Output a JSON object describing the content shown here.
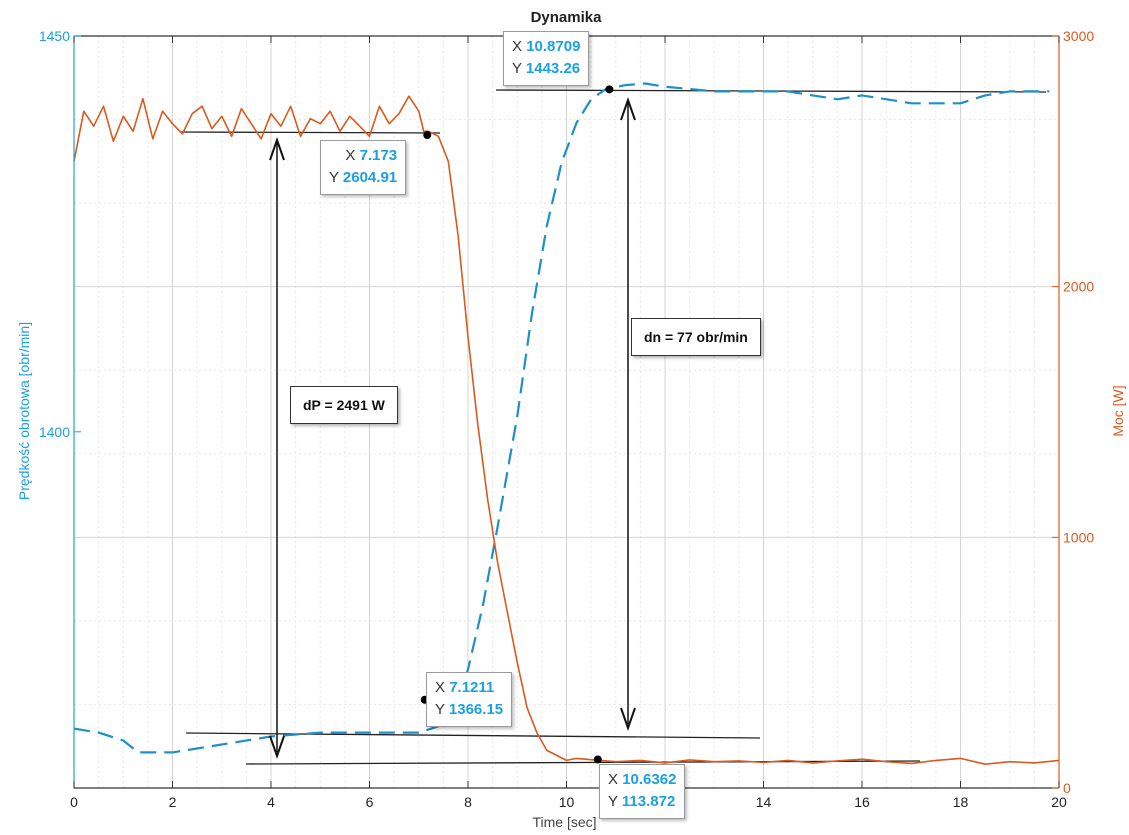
{
  "chart_data": {
    "type": "line",
    "title": "Dynamika",
    "xlabel": "Time [sec]",
    "ylabel_left": "Prędkość obrotowa [obr/min]",
    "ylabel_right": "Moc [W]",
    "xlim": [
      0,
      20
    ],
    "ylim_left": [
      1355,
      1450
    ],
    "ylim_right": [
      0,
      3000
    ],
    "x_ticks": [
      "0",
      "2",
      "4",
      "6",
      "8",
      "10",
      "12",
      "14",
      "16",
      "18",
      "20"
    ],
    "y_left_ticks": [
      "1400",
      "1450"
    ],
    "y_right_ticks": [
      "0",
      "1000",
      "2000",
      "3000"
    ],
    "grid": true,
    "colors": {
      "speed": "#1f8fc7",
      "power": "#d95a1e",
      "left_axis": "#1ba1e2",
      "right_axis": "#d95a1e"
    },
    "series": [
      {
        "axis": "left",
        "style": "dashed",
        "x": [
          0,
          0.5,
          1,
          1.2,
          1.3,
          2,
          3,
          4,
          5,
          6,
          7,
          7.5,
          7.8,
          8,
          8.3,
          8.6,
          9,
          9.3,
          9.6,
          9.9,
          10.2,
          10.5,
          10.8,
          11.2,
          11.6,
          12,
          12.5,
          13,
          13.5,
          14,
          14.5,
          15,
          15.5,
          16,
          16.5,
          17,
          17.5,
          18,
          18.5,
          19,
          19.5,
          19.8
        ],
        "y": [
          1362.5,
          1362,
          1361,
          1360,
          1359.5,
          1359.5,
          1360.5,
          1361.5,
          1362,
          1362,
          1362,
          1363,
          1366,
          1370,
          1378,
          1388,
          1402,
          1415,
          1426,
          1434,
          1439,
          1442,
          1443.3,
          1443.8,
          1444,
          1443.6,
          1443.3,
          1443,
          1443,
          1443,
          1443,
          1442.5,
          1442,
          1442.5,
          1442,
          1441.5,
          1441.5,
          1441.5,
          1442.5,
          1443,
          1443,
          1443
        ]
      },
      {
        "axis": "right",
        "style": "solid",
        "x": [
          0,
          0.2,
          0.4,
          0.6,
          0.8,
          1,
          1.2,
          1.4,
          1.6,
          1.8,
          2,
          2.2,
          2.4,
          2.6,
          2.8,
          3,
          3.2,
          3.4,
          3.6,
          3.8,
          4,
          4.2,
          4.4,
          4.6,
          4.8,
          5,
          5.2,
          5.4,
          5.6,
          5.8,
          6,
          6.2,
          6.4,
          6.6,
          6.8,
          7,
          7.1,
          7.2,
          7.4,
          7.6,
          7.8,
          8,
          8.2,
          8.4,
          8.6,
          8.8,
          9,
          9.2,
          9.4,
          9.6,
          9.8,
          10,
          10.2,
          10.5,
          11,
          11.5,
          12,
          12.5,
          13,
          13.5,
          14,
          14.5,
          15,
          15.5,
          16,
          16.5,
          17,
          17.5,
          18,
          18.5,
          19,
          19.5,
          20
        ],
        "y": [
          2500,
          2700,
          2640,
          2720,
          2580,
          2680,
          2620,
          2750,
          2590,
          2700,
          2650,
          2610,
          2690,
          2720,
          2630,
          2680,
          2600,
          2710,
          2650,
          2590,
          2690,
          2640,
          2720,
          2600,
          2670,
          2650,
          2700,
          2620,
          2680,
          2640,
          2600,
          2720,
          2650,
          2690,
          2760,
          2700,
          2620,
          2620,
          2600,
          2500,
          2200,
          1800,
          1450,
          1150,
          900,
          700,
          500,
          320,
          220,
          150,
          130,
          110,
          118,
          113,
          105,
          110,
          100,
          112,
          105,
          108,
          102,
          110,
          100,
          108,
          115,
          105,
          98,
          110,
          118,
          95,
          105,
          100,
          110
        ]
      }
    ],
    "datatips": [
      {
        "x_label": "X",
        "x": "7.173",
        "y_label": "Y",
        "y": "2604.91"
      },
      {
        "x_label": "X",
        "x": "10.8709",
        "y_label": "Y",
        "y": "1443.26"
      },
      {
        "x_label": "X",
        "x": "7.1211",
        "y_label": "Y",
        "y": "1366.15"
      },
      {
        "x_label": "X",
        "x": "10.6362",
        "y_label": "Y",
        "y": "113.872"
      }
    ],
    "annotations": [
      {
        "text": "dP = 2491 W"
      },
      {
        "text": "dn = 77 obr/min"
      }
    ]
  }
}
